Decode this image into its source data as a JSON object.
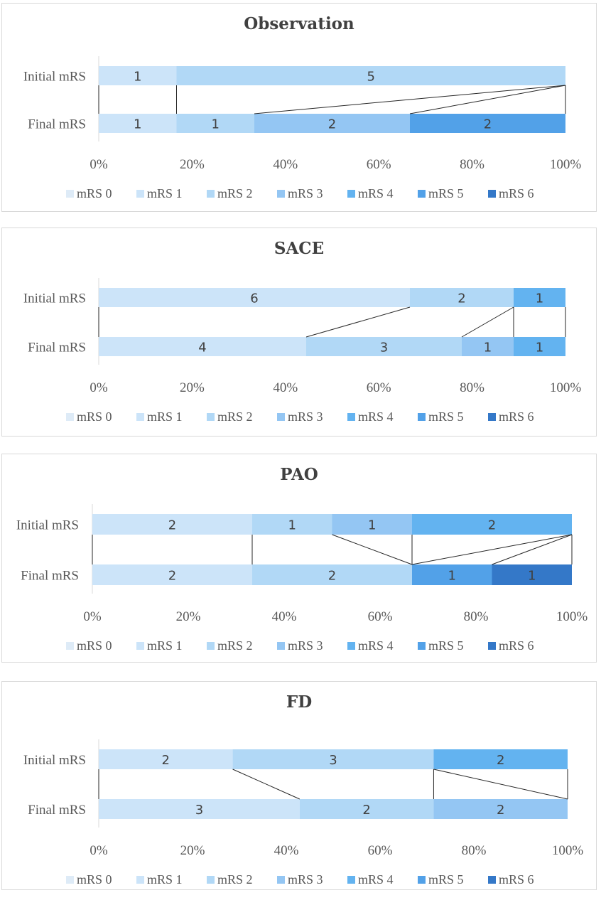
{
  "chart_data": [
    {
      "type": "bar",
      "title": "Observation",
      "categories": [
        "Initial mRS",
        "Final mRS"
      ],
      "xlim": [
        0,
        100
      ],
      "x_ticks": [
        "0%",
        "20%",
        "40%",
        "60%",
        "80%",
        "100%"
      ],
      "legend_position": "bottom",
      "series": [
        {
          "name": "mRS 0",
          "values": [
            0,
            0
          ]
        },
        {
          "name": "mRS 1",
          "values": [
            1,
            1
          ]
        },
        {
          "name": "mRS 2",
          "values": [
            5,
            1
          ]
        },
        {
          "name": "mRS 3",
          "values": [
            0,
            2
          ]
        },
        {
          "name": "mRS 4",
          "values": [
            0,
            0
          ]
        },
        {
          "name": "mRS 5",
          "values": [
            0,
            2
          ]
        },
        {
          "name": "mRS 6",
          "values": [
            0,
            0
          ]
        }
      ]
    },
    {
      "type": "bar",
      "title": "SACE",
      "categories": [
        "Initial mRS",
        "Final mRS"
      ],
      "xlim": [
        0,
        100
      ],
      "x_ticks": [
        "0%",
        "20%",
        "40%",
        "60%",
        "80%",
        "100%"
      ],
      "legend_position": "bottom",
      "series": [
        {
          "name": "mRS 0",
          "values": [
            0,
            0
          ]
        },
        {
          "name": "mRS 1",
          "values": [
            6,
            4
          ]
        },
        {
          "name": "mRS 2",
          "values": [
            2,
            3
          ]
        },
        {
          "name": "mRS 3",
          "values": [
            0,
            1
          ]
        },
        {
          "name": "mRS 4",
          "values": [
            1,
            1
          ]
        },
        {
          "name": "mRS 5",
          "values": [
            0,
            0
          ]
        },
        {
          "name": "mRS 6",
          "values": [
            0,
            0
          ]
        }
      ]
    },
    {
      "type": "bar",
      "title": "PAO",
      "categories": [
        "Initial mRS",
        "Final mRS"
      ],
      "xlim": [
        0,
        100
      ],
      "x_ticks": [
        "0%",
        "20%",
        "40%",
        "60%",
        "80%",
        "100%"
      ],
      "legend_position": "bottom",
      "series": [
        {
          "name": "mRS 0",
          "values": [
            0,
            0
          ]
        },
        {
          "name": "mRS 1",
          "values": [
            2,
            2
          ]
        },
        {
          "name": "mRS 2",
          "values": [
            1,
            2
          ]
        },
        {
          "name": "mRS 3",
          "values": [
            1,
            0
          ]
        },
        {
          "name": "mRS 4",
          "values": [
            2,
            0
          ]
        },
        {
          "name": "mRS 5",
          "values": [
            0,
            1
          ]
        },
        {
          "name": "mRS 6",
          "values": [
            0,
            1
          ]
        }
      ]
    },
    {
      "type": "bar",
      "title": "FD",
      "categories": [
        "Initial mRS",
        "Final mRS"
      ],
      "xlim": [
        0,
        100
      ],
      "x_ticks": [
        "0%",
        "20%",
        "40%",
        "60%",
        "80%",
        "100%"
      ],
      "legend_position": "bottom",
      "series": [
        {
          "name": "mRS 0",
          "values": [
            0,
            0
          ]
        },
        {
          "name": "mRS 1",
          "values": [
            2,
            3
          ]
        },
        {
          "name": "mRS 2",
          "values": [
            3,
            2
          ]
        },
        {
          "name": "mRS 3",
          "values": [
            0,
            2
          ]
        },
        {
          "name": "mRS 4",
          "values": [
            2,
            0
          ]
        },
        {
          "name": "mRS 5",
          "values": [
            0,
            0
          ]
        },
        {
          "name": "mRS 6",
          "values": [
            0,
            0
          ]
        }
      ]
    }
  ],
  "colors": {
    "mRS 0": "#deebf7",
    "mRS 1": "#cce4f9",
    "mRS 2": "#b1d8f6",
    "mRS 3": "#94c6f3",
    "mRS 4": "#63b3f0",
    "mRS 5": "#52a1e8",
    "mRS 6": "#3478c8",
    "connector": "#262626",
    "axis": "#d9d9d9"
  }
}
